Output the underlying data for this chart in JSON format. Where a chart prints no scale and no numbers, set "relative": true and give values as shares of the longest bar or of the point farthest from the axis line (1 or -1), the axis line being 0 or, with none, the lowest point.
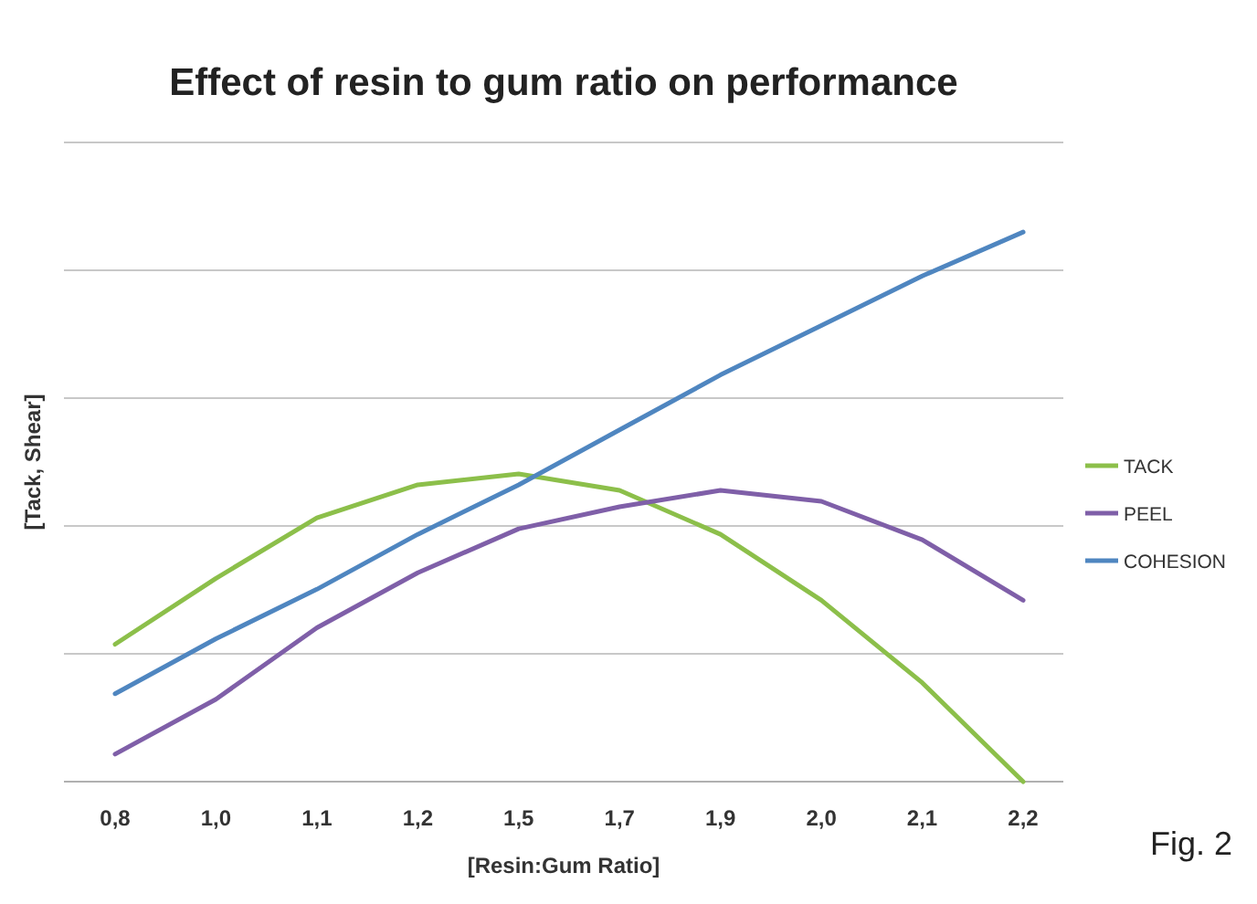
{
  "chart_data": {
    "type": "line",
    "title": "Effect of resin to gum ratio on performance",
    "xlabel": "[Resin:Gum Ratio]",
    "ylabel": "[Tack, Shear]",
    "annotations": [
      "Fig. 2"
    ],
    "relative": true,
    "grid": "y",
    "legend": "right",
    "categories": [
      "0,8",
      "1,0",
      "1,1",
      "1,2",
      "1,5",
      "1,7",
      "1,9",
      "2,0",
      "2,1",
      "2,2"
    ],
    "series": [
      {
        "name": "TACK",
        "color": "#8cbf4a",
        "values": [
          0.25,
          0.37,
          0.48,
          0.54,
          0.56,
          0.53,
          0.45,
          0.33,
          0.18,
          0
        ]
      },
      {
        "name": "PEEL",
        "color": "#7f5fa8",
        "values": [
          0.05,
          0.15,
          0.28,
          0.38,
          0.46,
          0.5,
          0.53,
          0.51,
          0.44,
          0.33
        ]
      },
      {
        "name": "COHESION",
        "color": "#4f86c0",
        "values": [
          0.16,
          0.26,
          0.35,
          0.45,
          0.54,
          0.64,
          0.74,
          0.83,
          0.92,
          1
        ]
      }
    ]
  }
}
